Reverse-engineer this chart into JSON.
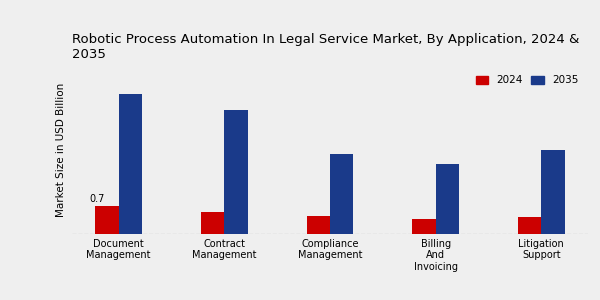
{
  "title": "Robotic Process Automation In Legal Service Market, By Application, 2024 &\n2035",
  "ylabel": "Market Size in USD Billion",
  "categories": [
    "Document\nManagement",
    "Contract\nManagement",
    "Compliance\nManagement",
    "Billing\nAnd\nInvoicing",
    "Litigation\nSupport"
  ],
  "values_2024": [
    0.7,
    0.55,
    0.45,
    0.38,
    0.42
  ],
  "values_2035": [
    3.5,
    3.1,
    2.0,
    1.75,
    2.1
  ],
  "color_2024": "#cc0000",
  "color_2035": "#1a3a8a",
  "annotation_text": "0.7",
  "annotation_bar": 0,
  "legend_2024": "2024",
  "legend_2035": "2035",
  "background_color": "#efefef",
  "ylim": [
    0,
    4.2
  ],
  "bar_width": 0.22,
  "title_fontsize": 9.5,
  "axis_label_fontsize": 7.5,
  "tick_fontsize": 7,
  "legend_fontsize": 7.5
}
